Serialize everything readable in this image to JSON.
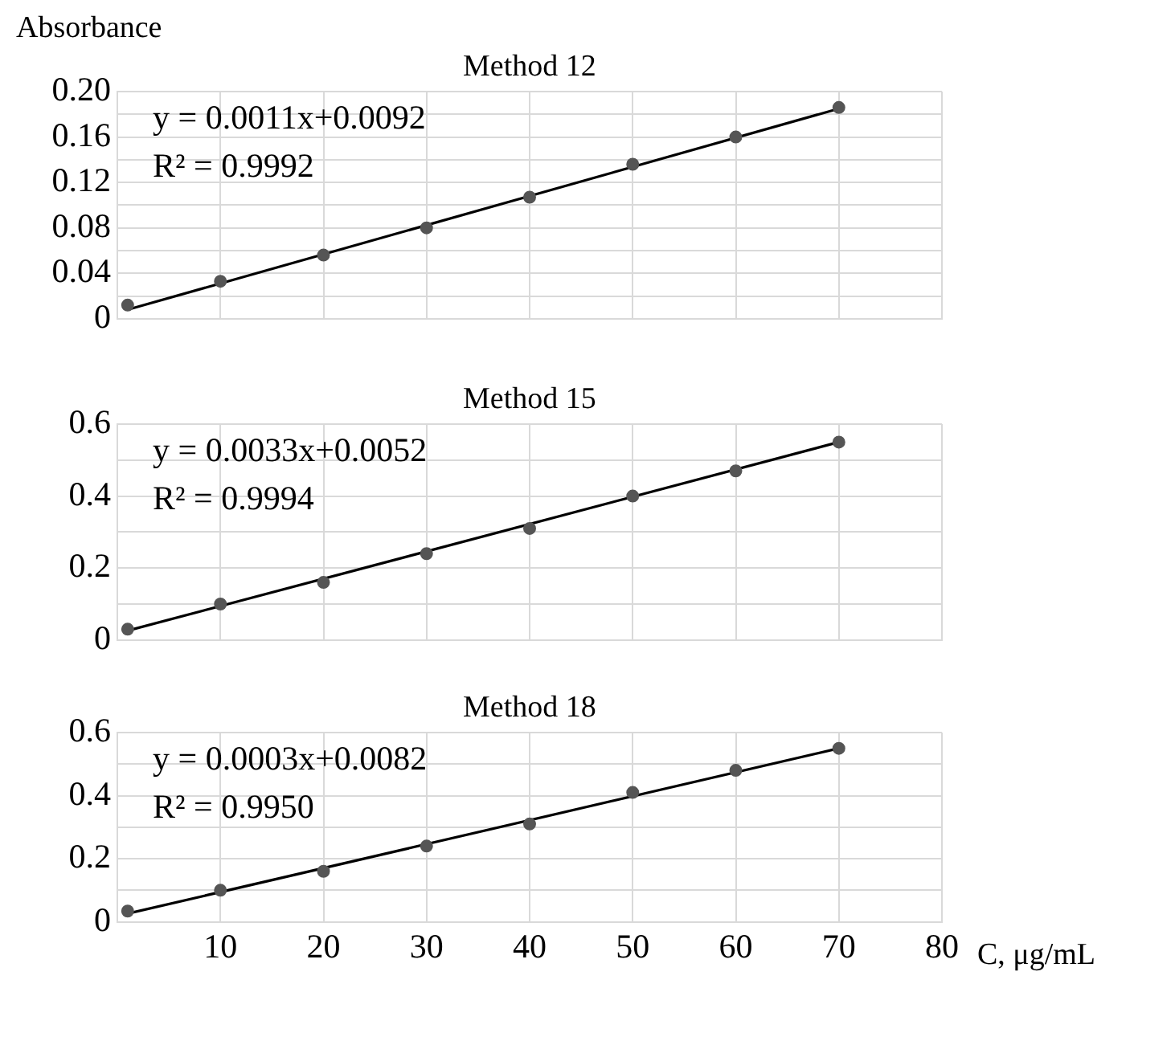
{
  "chart_data": [
    {
      "type": "scatter",
      "title": "Method 12",
      "ylabel": "Absorbance",
      "annotations": [
        "y = 0.0011x+0.0092",
        "R² = 0.9992"
      ],
      "xlim": [
        0,
        80
      ],
      "xticks": [
        10,
        20,
        30,
        40,
        50,
        60,
        70,
        80
      ],
      "ylim": [
        0,
        0.2
      ],
      "yticks": [
        0,
        {
          "value": 0.02,
          "label": null
        },
        0.04,
        {
          "value": 0.06,
          "label": null
        },
        0.08,
        {
          "value": 0.1,
          "label": null
        },
        0.12,
        {
          "value": 0.14,
          "label": null
        },
        0.16,
        {
          "value": 0.18,
          "label": null
        },
        {
          "value": 0.2,
          "label": "0.20"
        }
      ],
      "grid": true,
      "legend": false,
      "tick_labels": "y",
      "series": [
        {
          "type": "scatter",
          "color": "#555555",
          "marker": "circle",
          "x": [
            1,
            10,
            20,
            30,
            40,
            50,
            60,
            70
          ],
          "values": [
            0.012,
            0.033,
            0.056,
            0.08,
            0.107,
            0.136,
            0.16,
            0.186
          ]
        },
        {
          "type": "line",
          "color": "#000000",
          "marker": "none",
          "x": [
            1,
            70
          ],
          "values": [
            0.008,
            0.185
          ]
        }
      ]
    },
    {
      "type": "scatter",
      "title": "Method 15",
      "annotations": [
        "y = 0.0033x+0.0052",
        "R² = 0.9994"
      ],
      "xlim": [
        0,
        80
      ],
      "xticks": [
        10,
        20,
        30,
        40,
        50,
        60,
        70,
        80
      ],
      "ylim": [
        0,
        0.6
      ],
      "yticks": [
        0,
        {
          "value": 0.1,
          "label": null
        },
        0.2,
        {
          "value": 0.3,
          "label": null
        },
        0.4,
        {
          "value": 0.5,
          "label": null
        },
        0.6
      ],
      "grid": true,
      "legend": false,
      "tick_labels": "y",
      "series": [
        {
          "type": "scatter",
          "color": "#555555",
          "marker": "circle",
          "x": [
            1,
            10,
            20,
            30,
            40,
            50,
            60,
            70
          ],
          "values": [
            0.03,
            0.1,
            0.16,
            0.24,
            0.31,
            0.4,
            0.47,
            0.55
          ]
        },
        {
          "type": "line",
          "color": "#000000",
          "marker": "none",
          "x": [
            1,
            70
          ],
          "values": [
            0.026,
            0.55
          ]
        }
      ]
    },
    {
      "type": "scatter",
      "title": "Method 18",
      "xlabel": "C, μg/mL",
      "annotations": [
        "y = 0.0003x+0.0082",
        "R² = 0.9950"
      ],
      "xlim": [
        0,
        80
      ],
      "xticks": [
        10,
        20,
        30,
        40,
        50,
        60,
        70,
        80
      ],
      "ylim": [
        0,
        0.6
      ],
      "yticks": [
        0,
        {
          "value": 0.1,
          "label": null
        },
        0.2,
        {
          "value": 0.3,
          "label": null
        },
        0.4,
        {
          "value": 0.5,
          "label": null
        },
        0.6
      ],
      "grid": true,
      "legend": false,
      "series": [
        {
          "type": "scatter",
          "color": "#555555",
          "marker": "circle",
          "x": [
            1,
            10,
            20,
            30,
            40,
            50,
            60,
            70
          ],
          "values": [
            0.034,
            0.1,
            0.16,
            0.24,
            0.31,
            0.41,
            0.48,
            0.55
          ]
        },
        {
          "type": "line",
          "color": "#000000",
          "marker": "none",
          "x": [
            1,
            70
          ],
          "values": [
            0.026,
            0.55
          ]
        }
      ]
    }
  ]
}
